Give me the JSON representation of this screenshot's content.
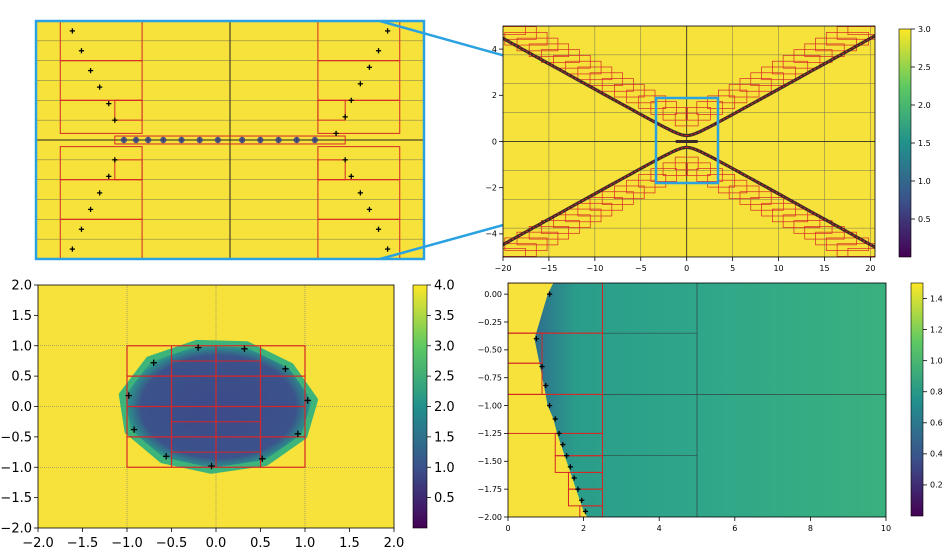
{
  "colors": {
    "field_high": "#f6e23a",
    "field_low": "#3e4a89",
    "field_mid": "#2ea58a",
    "mesh_red": "#d62728",
    "mesh_dark": "#555555",
    "zoom_box": "#2aa1e0",
    "points": "#000000",
    "viridis": [
      "#440154",
      "#3b528b",
      "#21918c",
      "#5ec962",
      "#fde725"
    ]
  },
  "chart_data": [
    {
      "name": "zoom-inset",
      "type": "heatmap",
      "description_free": true,
      "x_range": [
        -3.2,
        3.2
      ],
      "y_range": [
        -1.8,
        1.8
      ],
      "points": [
        [
          -2.6,
          1.65
        ],
        [
          -2.45,
          1.35
        ],
        [
          -2.3,
          1.05
        ],
        [
          -2.15,
          0.8
        ],
        [
          -2.0,
          0.55
        ],
        [
          -1.9,
          0.3
        ],
        [
          -1.75,
          0.0
        ],
        [
          -1.55,
          0.0
        ],
        [
          -1.35,
          0.0
        ],
        [
          -1.1,
          0.0
        ],
        [
          -0.8,
          0.0
        ],
        [
          -0.5,
          0.0
        ],
        [
          -0.2,
          0.0
        ],
        [
          0.2,
          0.0
        ],
        [
          0.5,
          0.0
        ],
        [
          0.8,
          0.0
        ],
        [
          1.1,
          0.0
        ],
        [
          1.4,
          0.0
        ],
        [
          1.75,
          0.1
        ],
        [
          1.9,
          0.35
        ],
        [
          2.0,
          0.6
        ],
        [
          2.15,
          0.85
        ],
        [
          2.3,
          1.1
        ],
        [
          2.45,
          1.35
        ],
        [
          2.6,
          1.65
        ],
        [
          -1.9,
          -0.3
        ],
        [
          -2.0,
          -0.55
        ],
        [
          -2.15,
          -0.8
        ],
        [
          -2.3,
          -1.05
        ],
        [
          -2.45,
          -1.35
        ],
        [
          -2.6,
          -1.65
        ],
        [
          1.9,
          -0.3
        ],
        [
          2.0,
          -0.55
        ],
        [
          2.15,
          -0.8
        ],
        [
          2.3,
          -1.05
        ],
        [
          2.45,
          -1.35
        ],
        [
          2.6,
          -1.65
        ]
      ]
    },
    {
      "name": "hyperbola-plot",
      "type": "heatmap",
      "xlim": [
        -20,
        20.5
      ],
      "ylim": [
        -5,
        5
      ],
      "xticks": [
        -20,
        -15,
        -10,
        -5,
        0,
        5,
        10,
        15,
        20
      ],
      "yticks": [
        -4,
        -2,
        0,
        2,
        4
      ],
      "colorbar": {
        "min": 0,
        "max": 3.0,
        "ticks": [
          0.5,
          1.0,
          1.5,
          2.0,
          2.5,
          3.0
        ]
      },
      "zoom_box": {
        "x": [
          -3.2,
          3.2
        ],
        "y": [
          -1.8,
          1.8
        ]
      }
    },
    {
      "name": "disk-plot",
      "type": "heatmap",
      "xlim": [
        -2.0,
        2.0
      ],
      "ylim": [
        -2.0,
        2.0
      ],
      "xticks": [
        -2.0,
        -1.5,
        -1.0,
        -0.5,
        0.0,
        0.5,
        1.0,
        1.5,
        2.0
      ],
      "yticks": [
        -2.0,
        -1.5,
        -1.0,
        -0.5,
        0.0,
        0.5,
        1.0,
        1.5,
        2.0
      ],
      "colorbar": {
        "min": 0,
        "max": 4.0,
        "ticks": [
          0.5,
          1.0,
          1.5,
          2.0,
          2.5,
          3.0,
          3.5,
          4.0
        ]
      },
      "points": [
        [
          -0.2,
          0.97
        ],
        [
          0.32,
          0.95
        ],
        [
          0.78,
          0.62
        ],
        [
          1.03,
          0.1
        ],
        [
          0.92,
          -0.45
        ],
        [
          0.52,
          -0.86
        ],
        [
          -0.05,
          -0.98
        ],
        [
          -0.56,
          -0.82
        ],
        [
          -0.92,
          -0.38
        ],
        [
          -0.98,
          0.18
        ],
        [
          -0.7,
          0.72
        ]
      ],
      "mesh_box": {
        "x": [
          -1.0,
          1.0
        ],
        "y": [
          -1.0,
          1.0
        ]
      }
    },
    {
      "name": "wall-plot",
      "type": "heatmap",
      "xlim": [
        0,
        10
      ],
      "ylim": [
        -2.0,
        0.1
      ],
      "xticks": [
        0,
        2,
        4,
        6,
        8,
        10
      ],
      "yticks": [
        0.0,
        -0.25,
        -0.5,
        -0.75,
        -1.0,
        -1.25,
        -1.5,
        -1.75,
        -2.0
      ],
      "colorbar": {
        "min": 0,
        "max": 1.5,
        "ticks": [
          0.2,
          0.4,
          0.6,
          0.8,
          1.0,
          1.2,
          1.4
        ]
      },
      "points": [
        [
          1.1,
          0.0
        ],
        [
          0.75,
          -0.4
        ],
        [
          0.9,
          -0.65
        ],
        [
          1.0,
          -0.82
        ],
        [
          1.1,
          -1.0
        ],
        [
          1.25,
          -1.12
        ],
        [
          1.35,
          -1.25
        ],
        [
          1.45,
          -1.35
        ],
        [
          1.55,
          -1.45
        ],
        [
          1.65,
          -1.55
        ],
        [
          1.75,
          -1.65
        ],
        [
          1.85,
          -1.75
        ],
        [
          1.95,
          -1.85
        ],
        [
          2.05,
          -1.95
        ]
      ]
    }
  ]
}
